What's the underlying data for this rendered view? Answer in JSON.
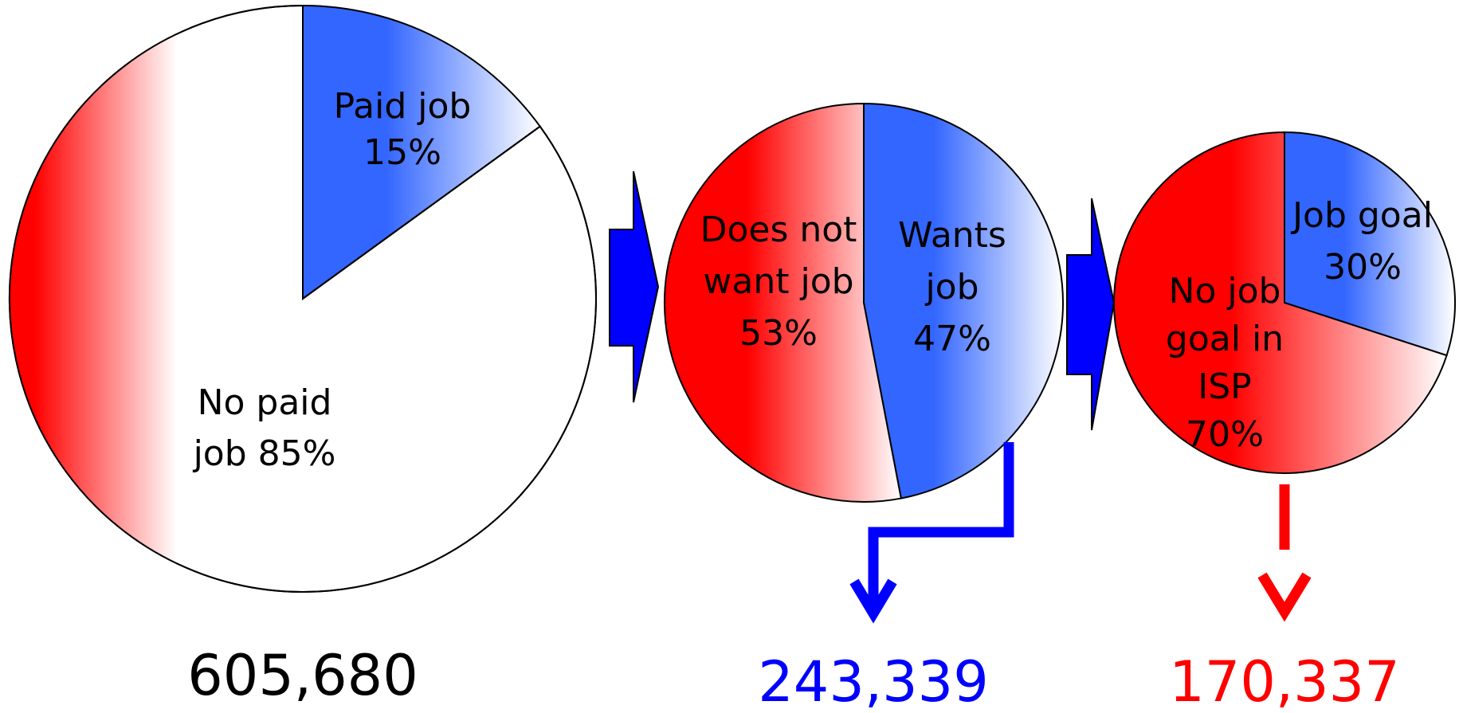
{
  "chart_data": [
    {
      "type": "pie",
      "slices": [
        {
          "label_lines": [
            "Paid job",
            "15%"
          ],
          "value": 15
        },
        {
          "label_lines": [
            "No paid",
            "job 85%"
          ],
          "value": 85
        }
      ],
      "total_label": "605,680"
    },
    {
      "type": "pie",
      "slices": [
        {
          "label_lines": [
            "Wants",
            "job",
            "47%"
          ],
          "value": 47
        },
        {
          "label_lines": [
            "Does not",
            "want job",
            "53%"
          ],
          "value": 53
        }
      ],
      "total_label": "243,339"
    },
    {
      "type": "pie",
      "slices": [
        {
          "label_lines": [
            "Job goal",
            "30%"
          ],
          "value": 30
        },
        {
          "label_lines": [
            "No job",
            "goal in",
            "ISP",
            "70%"
          ],
          "value": 70
        }
      ],
      "total_label": "170,337"
    }
  ],
  "colors": {
    "blue_slice": "#3366ff",
    "red_slice": "#ff0000",
    "arrow_blue": "#0000ff",
    "count_blue": "#0000ff",
    "count_red": "#ff0000",
    "count_black": "#000000"
  }
}
